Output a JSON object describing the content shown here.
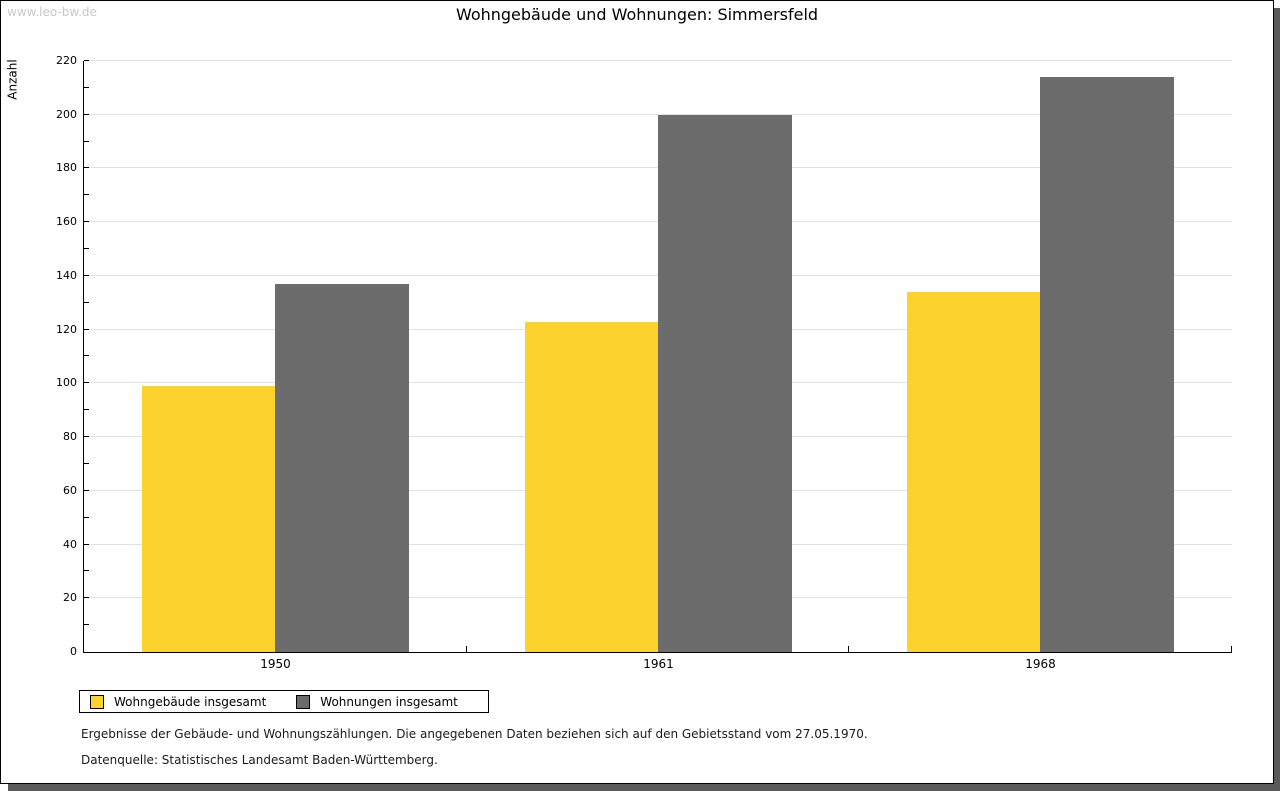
{
  "watermark": "www.leo-bw.de",
  "footer": {
    "line1": "Ergebnisse der Gebäude- und Wohnungszählungen. Die angegebenen Daten beziehen sich auf den Gebietsstand vom 27.05.1970.",
    "line2": "Datenquelle: Statistisches Landesamt Baden-Württemberg."
  },
  "colors": {
    "series1": "#FCD32C",
    "series2": "#6C6C6C",
    "gridline": "#E2E2E2",
    "shadow": "#5A5A5A",
    "watermark": "#C9C9C9"
  },
  "chart_data": {
    "type": "bar",
    "title": "Wohngebäude und Wohnungen: Simmersfeld",
    "xlabel": "",
    "ylabel": "Anzahl",
    "categories": [
      "1950",
      "1961",
      "1968"
    ],
    "series": [
      {
        "name": "Wohngebäude insgesamt",
        "color": "#FCD32C",
        "values": [
          99,
          123,
          134
        ]
      },
      {
        "name": "Wohnungen insgesamt",
        "color": "#6C6C6C",
        "values": [
          137,
          200,
          214
        ]
      }
    ],
    "ylim": [
      0,
      220
    ],
    "ytick_step": 20,
    "minor_tick_step": 10,
    "grid": "horizontal-major",
    "legend_position": "bottom-left"
  }
}
